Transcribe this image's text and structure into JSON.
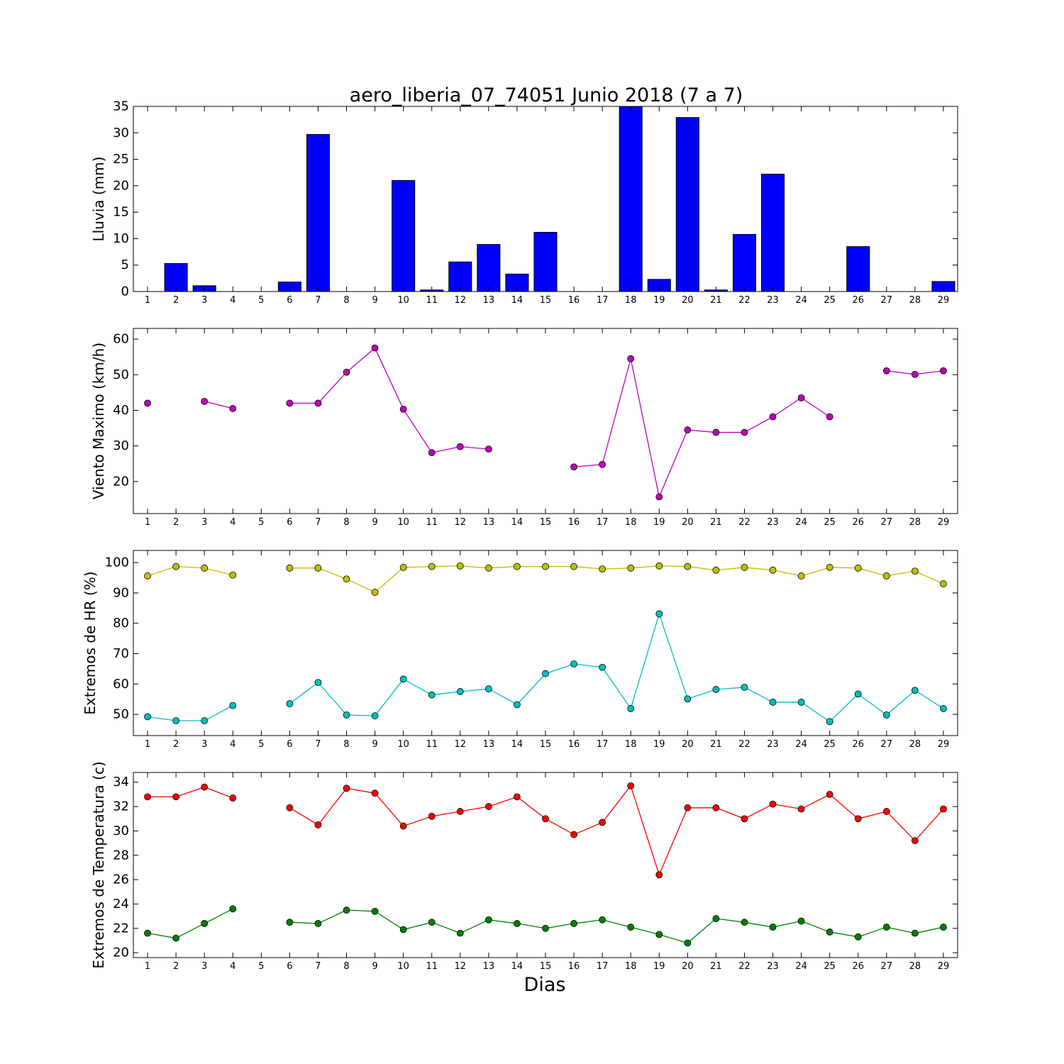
{
  "figure": {
    "title": "aero_liberia_07_74051 Junio 2018  (7 a 7)",
    "xlabel": "Dias"
  },
  "chart_data": [
    {
      "type": "bar",
      "ylabel": "Lluvia (mm)",
      "ylim": [
        0,
        35
      ],
      "yticks": [
        0,
        5,
        10,
        15,
        20,
        25,
        30,
        35
      ],
      "x": [
        1,
        2,
        3,
        4,
        5,
        6,
        7,
        8,
        9,
        10,
        11,
        12,
        13,
        14,
        15,
        16,
        17,
        18,
        19,
        20,
        21,
        22,
        23,
        24,
        25,
        26,
        27,
        28,
        29
      ],
      "series": [
        {
          "color": "#0000ff",
          "values": [
            0,
            5.3,
            1.1,
            0,
            0,
            1.8,
            29.7,
            0,
            0,
            21.0,
            0.3,
            5.6,
            8.9,
            3.3,
            11.2,
            0,
            0,
            35.0,
            2.3,
            32.9,
            0.3,
            10.8,
            22.2,
            0,
            0,
            8.5,
            0,
            0,
            1.9
          ]
        }
      ]
    },
    {
      "type": "line",
      "ylabel": "Viento Maximo (km/h)",
      "ylim": [
        11,
        63
      ],
      "yticks": [
        20,
        30,
        40,
        50,
        60
      ],
      "x": [
        1,
        2,
        3,
        4,
        5,
        6,
        7,
        8,
        9,
        10,
        11,
        12,
        13,
        14,
        15,
        16,
        17,
        18,
        19,
        20,
        21,
        22,
        23,
        24,
        25,
        26,
        27,
        28,
        29
      ],
      "series": [
        {
          "color": "#bf00bf",
          "values": [
            42.0,
            null,
            42.5,
            40.5,
            null,
            42.0,
            42.0,
            50.7,
            57.5,
            40.3,
            28.1,
            29.8,
            29.1,
            null,
            null,
            24.1,
            24.8,
            54.5,
            15.7,
            34.5,
            33.8,
            33.8,
            38.2,
            43.5,
            38.2,
            null,
            51.1,
            50.1,
            51.1
          ]
        }
      ]
    },
    {
      "type": "line",
      "ylabel": "Extremos de HR (%)",
      "ylim": [
        43,
        104
      ],
      "yticks": [
        50,
        60,
        70,
        80,
        90,
        100
      ],
      "x": [
        1,
        2,
        3,
        4,
        5,
        6,
        7,
        8,
        9,
        10,
        11,
        12,
        13,
        14,
        15,
        16,
        17,
        18,
        19,
        20,
        21,
        22,
        23,
        24,
        25,
        26,
        27,
        28,
        29
      ],
      "series": [
        {
          "color": "#bfbf00",
          "values": [
            95.6,
            98.7,
            98.2,
            95.9,
            null,
            98.2,
            98.2,
            94.6,
            90.2,
            98.4,
            98.7,
            98.9,
            98.2,
            98.7,
            98.7,
            98.7,
            97.9,
            98.2,
            98.9,
            98.7,
            97.5,
            98.4,
            97.5,
            95.6,
            98.4,
            98.2,
            95.6,
            97.2,
            93.0
          ]
        },
        {
          "color": "#00bfbf",
          "values": [
            49.2,
            47.9,
            47.9,
            52.9,
            null,
            53.5,
            60.5,
            49.8,
            49.5,
            61.6,
            56.4,
            57.5,
            58.4,
            53.2,
            63.4,
            66.6,
            65.5,
            51.9,
            83.1,
            55.1,
            58.2,
            58.9,
            54.0,
            54.0,
            47.6,
            56.7,
            49.8,
            57.9,
            51.9
          ]
        }
      ]
    },
    {
      "type": "line",
      "ylabel": "Extremos de Temperatura (c)",
      "ylim": [
        19.6,
        34.8
      ],
      "yticks": [
        20,
        22,
        24,
        26,
        28,
        30,
        32,
        34
      ],
      "x": [
        1,
        2,
        3,
        4,
        5,
        6,
        7,
        8,
        9,
        10,
        11,
        12,
        13,
        14,
        15,
        16,
        17,
        18,
        19,
        20,
        21,
        22,
        23,
        24,
        25,
        26,
        27,
        28,
        29
      ],
      "series": [
        {
          "color": "#ff0000",
          "values": [
            32.8,
            32.8,
            33.6,
            32.7,
            null,
            31.9,
            30.5,
            33.5,
            33.1,
            30.4,
            31.2,
            31.6,
            32.0,
            32.8,
            31.0,
            29.7,
            30.7,
            33.7,
            26.4,
            31.9,
            31.9,
            31.0,
            32.2,
            31.8,
            33.0,
            31.0,
            31.6,
            29.2,
            31.8
          ]
        },
        {
          "color": "#008000",
          "values": [
            21.6,
            21.2,
            22.4,
            23.6,
            null,
            22.5,
            22.4,
            23.5,
            23.4,
            21.9,
            22.5,
            21.6,
            22.7,
            22.4,
            22.0,
            22.4,
            22.7,
            22.1,
            21.5,
            20.8,
            22.8,
            22.5,
            22.1,
            22.6,
            21.7,
            21.3,
            22.1,
            21.6,
            22.1
          ]
        }
      ]
    }
  ]
}
